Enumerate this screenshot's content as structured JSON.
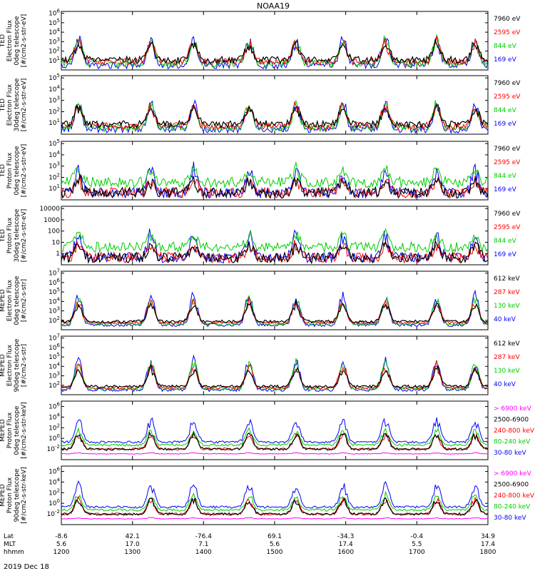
{
  "title": "NOAA19",
  "date_label": "2019 Dec 18",
  "colors": {
    "black": "#000000",
    "red": "#ff0000",
    "green": "#00cc00",
    "blue": "#0000ff",
    "magenta": "#ff00ff"
  },
  "orbit_axis": {
    "row_labels": [
      "Lat",
      "MLT",
      "hhmm"
    ],
    "columns": [
      {
        "lat": "-8.6",
        "mlt": "5.6",
        "hhmm": "1200"
      },
      {
        "lat": "42.1",
        "mlt": "17.0",
        "hhmm": "1300"
      },
      {
        "lat": "-76.4",
        "mlt": "7.1",
        "hhmm": "1400"
      },
      {
        "lat": "69.1",
        "mlt": "5.6",
        "hhmm": "1500"
      },
      {
        "lat": "-34.3",
        "mlt": "17.4",
        "hhmm": "1600"
      },
      {
        "lat": "-0.4",
        "mlt": "5.5",
        "hhmm": "1700"
      },
      {
        "lat": "34.9",
        "mlt": "17.4",
        "hhmm": "1800"
      }
    ]
  },
  "chart_data": [
    {
      "type": "line",
      "instrument": "TED",
      "title": "",
      "ylabel_lines": [
        "TED",
        "Electron Flux",
        "0deg telescope",
        "[#/cm2-s-str-eV]"
      ],
      "y_scale": "log",
      "ylim": [
        1,
        1000000
      ],
      "y_ticks": [
        "10^1",
        "10^2",
        "10^3",
        "10^4",
        "10^5",
        "10^6"
      ],
      "x_range": [
        "1200",
        "1800"
      ],
      "legend": [
        {
          "label": "7960 eV",
          "color": "black"
        },
        {
          "label": "2595 eV",
          "color": "red"
        },
        {
          "label": "844 eV",
          "color": "green"
        },
        {
          "label": "169 eV",
          "color": "blue"
        }
      ],
      "peaks_hhmm": [
        "1215",
        "1310",
        "1325",
        "1400",
        "1405",
        "1500",
        "1505",
        "1520",
        "1605",
        "1620",
        "1715",
        "1745"
      ]
    },
    {
      "type": "line",
      "instrument": "TED",
      "title": "",
      "ylabel_lines": [
        "TED",
        "Electron Flux",
        "30deg telescope",
        "[#/cm2-s-str-eV]"
      ],
      "y_scale": "log",
      "ylim": [
        1,
        100000
      ],
      "y_ticks": [
        "10^1",
        "10^2",
        "10^3",
        "10^4",
        "10^5"
      ],
      "x_range": [
        "1200",
        "1800"
      ],
      "legend": [
        {
          "label": "7960 eV",
          "color": "black"
        },
        {
          "label": "2595 eV",
          "color": "red"
        },
        {
          "label": "844 eV",
          "color": "green"
        },
        {
          "label": "169 eV",
          "color": "blue"
        }
      ],
      "peaks_hhmm": [
        "1215",
        "1310",
        "1325",
        "1400",
        "1405",
        "1500",
        "1505",
        "1520",
        "1605",
        "1620",
        "1715",
        "1745"
      ]
    },
    {
      "type": "line",
      "instrument": "TED",
      "title": "",
      "ylabel_lines": [
        "TED",
        "Proton Flux",
        "0deg telescope",
        "[#/cm2-s-str-eV]"
      ],
      "y_scale": "log",
      "ylim": [
        1,
        100000
      ],
      "y_ticks": [
        "10^1",
        "10^2",
        "10^3",
        "10^4",
        "10^5"
      ],
      "x_range": [
        "1200",
        "1800"
      ],
      "legend": [
        {
          "label": "7960 eV",
          "color": "black"
        },
        {
          "label": "2595 eV",
          "color": "red"
        },
        {
          "label": "844 eV",
          "color": "green"
        },
        {
          "label": "169 eV",
          "color": "blue"
        }
      ]
    },
    {
      "type": "line",
      "instrument": "TED",
      "title": "",
      "ylabel_lines": [
        "TED",
        "Proton Flux",
        "30deg telescope",
        "[#/cm2-s-str-eV]"
      ],
      "y_scale": "log",
      "ylim": [
        1,
        10000
      ],
      "y_ticks": [
        "1",
        "10",
        "100",
        "1000",
        "10000"
      ],
      "x_range": [
        "1200",
        "1800"
      ],
      "legend": [
        {
          "label": "7960 eV",
          "color": "black"
        },
        {
          "label": "2595 eV",
          "color": "red"
        },
        {
          "label": "844 eV",
          "color": "green"
        },
        {
          "label": "169 eV",
          "color": "blue"
        }
      ]
    },
    {
      "type": "line",
      "instrument": "MEPED",
      "title": "",
      "ylabel_lines": [
        "MEPED",
        "Electron Flux",
        "0deg telescope",
        "[#/cm2-s-str]"
      ],
      "y_scale": "log",
      "ylim": [
        100,
        10000000
      ],
      "y_ticks": [
        "10^2",
        "10^3",
        "10^4",
        "10^5",
        "10^6",
        "10^7"
      ],
      "x_range": [
        "1200",
        "1800"
      ],
      "legend": [
        {
          "label": "612 keV",
          "color": "black"
        },
        {
          "label": "287 keV",
          "color": "red"
        },
        {
          "label": "130 keV",
          "color": "green"
        },
        {
          "label": "40 keV",
          "color": "blue"
        }
      ]
    },
    {
      "type": "line",
      "instrument": "MEPED",
      "title": "",
      "ylabel_lines": [
        "MEPED",
        "Electron Flux",
        "90deg telescope",
        "[#/cm2-s-str]"
      ],
      "y_scale": "log",
      "ylim": [
        100,
        10000000
      ],
      "y_ticks": [
        "10^2",
        "10^3",
        "10^4",
        "10^5",
        "10^6",
        "10^7"
      ],
      "x_range": [
        "1200",
        "1800"
      ],
      "legend": [
        {
          "label": "612 keV",
          "color": "black"
        },
        {
          "label": "287 keV",
          "color": "red"
        },
        {
          "label": "130 keV",
          "color": "green"
        },
        {
          "label": "40 keV",
          "color": "blue"
        }
      ]
    },
    {
      "type": "line",
      "instrument": "MEPED",
      "title": "",
      "ylabel_lines": [
        "MEPED",
        "Proton Flux",
        "0deg telescope",
        "[#/cm2-s-str-keV]"
      ],
      "y_scale": "log",
      "ylim": [
        0.01,
        1000000
      ],
      "y_ticks": [
        "10^-2",
        "10^0",
        "10^2",
        "10^4",
        "10^6"
      ],
      "x_range": [
        "1200",
        "1800"
      ],
      "legend": [
        {
          "label": "> 6900 keV",
          "color": "magenta"
        },
        {
          "label": "2500-6900",
          "color": "black"
        },
        {
          "label": "240-800 keV",
          "color": "red"
        },
        {
          "label": "80-240 keV",
          "color": "green"
        },
        {
          "label": "30-80 keV",
          "color": "blue"
        }
      ]
    },
    {
      "type": "line",
      "instrument": "MEPED",
      "title": "",
      "ylabel_lines": [
        "MEPED",
        "Proton Flux",
        "90deg telescope",
        "[#/cm2-s-str-keV]"
      ],
      "y_scale": "log",
      "ylim": [
        0.01,
        1000000
      ],
      "y_ticks": [
        "10^-2",
        "10^0",
        "10^2",
        "10^4",
        "10^6"
      ],
      "x_range": [
        "1200",
        "1800"
      ],
      "legend": [
        {
          "label": "> 6900 keV",
          "color": "magenta"
        },
        {
          "label": "2500-6900",
          "color": "black"
        },
        {
          "label": "240-800 keV",
          "color": "red"
        },
        {
          "label": "80-240 keV",
          "color": "green"
        },
        {
          "label": "30-80 keV",
          "color": "blue"
        }
      ]
    }
  ]
}
